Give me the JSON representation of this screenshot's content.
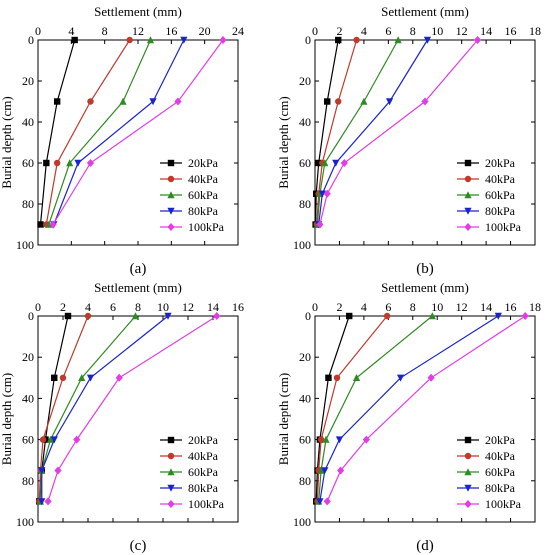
{
  "colors": {
    "20kPa": "#000000",
    "40kPa": "#c0392b",
    "60kPa": "#2e8b22",
    "80kPa": "#1a23d0",
    "100kPa": "#e23ce6"
  },
  "chart_data": [
    {
      "type": "line",
      "panel_label": "(a)",
      "xlabel": "Settlement (mm)",
      "ylabel": "Burial depth (cm)",
      "xlim": [
        0,
        24
      ],
      "xticks": [
        0,
        4,
        8,
        12,
        16,
        20,
        24
      ],
      "ylim": [
        0,
        100
      ],
      "yticks": [
        0,
        20,
        40,
        60,
        80,
        100
      ],
      "legend": "bottom-right",
      "series": [
        {
          "name": "20kPa",
          "marker": "square",
          "x": [
            4.4,
            2.3,
            1.0,
            0.3
          ],
          "y": [
            0,
            30,
            60,
            90
          ]
        },
        {
          "name": "40kPa",
          "marker": "circle",
          "x": [
            11.0,
            6.3,
            2.3,
            1.0
          ],
          "y": [
            0,
            30,
            60,
            90
          ]
        },
        {
          "name": "60kPa",
          "marker": "triangle-up",
          "x": [
            13.5,
            10.2,
            3.8,
            1.3
          ],
          "y": [
            0,
            30,
            60,
            90
          ]
        },
        {
          "name": "80kPa",
          "marker": "triangle-down",
          "x": [
            17.5,
            13.8,
            4.8,
            1.9
          ],
          "y": [
            0,
            30,
            60,
            90
          ]
        },
        {
          "name": "100kPa",
          "marker": "diamond",
          "x": [
            22.2,
            16.8,
            6.3,
            1.8
          ],
          "y": [
            0,
            30,
            60,
            90
          ]
        }
      ]
    },
    {
      "type": "line",
      "panel_label": "(b)",
      "xlabel": "Settlement (mm)",
      "ylabel": "Burial depth (cm)",
      "xlim": [
        0,
        18
      ],
      "xticks": [
        0,
        2,
        4,
        6,
        8,
        10,
        12,
        14,
        16,
        18
      ],
      "ylim": [
        0,
        100
      ],
      "yticks": [
        0,
        20,
        40,
        60,
        80,
        100
      ],
      "legend": "bottom-right",
      "series": [
        {
          "name": "20kPa",
          "marker": "square",
          "x": [
            1.9,
            1.0,
            0.3,
            0.1,
            0.05
          ],
          "y": [
            0,
            30,
            60,
            75,
            90
          ]
        },
        {
          "name": "40kPa",
          "marker": "circle",
          "x": [
            3.4,
            1.9,
            0.6,
            0.3,
            0.15
          ],
          "y": [
            0,
            30,
            60,
            75,
            90
          ]
        },
        {
          "name": "60kPa",
          "marker": "triangle-up",
          "x": [
            6.8,
            4.0,
            0.8,
            0.4,
            0.2
          ],
          "y": [
            0,
            30,
            60,
            75,
            90
          ]
        },
        {
          "name": "80kPa",
          "marker": "triangle-down",
          "x": [
            9.2,
            6.1,
            1.7,
            0.6,
            0.3
          ],
          "y": [
            0,
            30,
            60,
            75,
            90
          ]
        },
        {
          "name": "100kPa",
          "marker": "diamond",
          "x": [
            13.3,
            9.0,
            2.4,
            1.0,
            0.4
          ],
          "y": [
            0,
            30,
            60,
            75,
            90
          ]
        }
      ]
    },
    {
      "type": "line",
      "panel_label": "(c)",
      "xlabel": "Settlement (mm)",
      "ylabel": "Burial depth (cm)",
      "xlim": [
        0,
        16
      ],
      "xticks": [
        0,
        2,
        4,
        6,
        8,
        10,
        12,
        14,
        16
      ],
      "ylim": [
        0,
        100
      ],
      "yticks": [
        0,
        20,
        40,
        60,
        80,
        100
      ],
      "legend": "bottom-right",
      "series": [
        {
          "name": "20kPa",
          "marker": "square",
          "x": [
            2.4,
            1.3,
            0.6,
            0.3,
            0.1
          ],
          "y": [
            0,
            30,
            60,
            75,
            90
          ]
        },
        {
          "name": "40kPa",
          "marker": "circle",
          "x": [
            4.0,
            2.0,
            0.4,
            0.2,
            0.1
          ],
          "y": [
            0,
            30,
            60,
            75,
            90
          ]
        },
        {
          "name": "60kPa",
          "marker": "triangle-up",
          "x": [
            7.8,
            3.5,
            1.0,
            0.3,
            0.2
          ],
          "y": [
            0,
            30,
            60,
            75,
            90
          ]
        },
        {
          "name": "80kPa",
          "marker": "triangle-down",
          "x": [
            10.4,
            4.2,
            1.3,
            0.3,
            0.3
          ],
          "y": [
            0,
            30,
            60,
            75,
            90
          ]
        },
        {
          "name": "100kPa",
          "marker": "diamond",
          "x": [
            14.3,
            6.5,
            3.1,
            1.6,
            0.8
          ],
          "y": [
            0,
            30,
            60,
            75,
            90
          ]
        }
      ]
    },
    {
      "type": "line",
      "panel_label": "(d)",
      "xlabel": "Settlement (mm)",
      "ylabel": "Burial depth (cm)",
      "xlim": [
        0,
        18
      ],
      "xticks": [
        0,
        2,
        4,
        6,
        8,
        10,
        12,
        14,
        16,
        18
      ],
      "ylim": [
        0,
        100
      ],
      "yticks": [
        0,
        20,
        40,
        60,
        80,
        100
      ],
      "legend": "bottom-right",
      "series": [
        {
          "name": "20kPa",
          "marker": "square",
          "x": [
            2.8,
            1.1,
            0.4,
            0.2,
            0.1
          ],
          "y": [
            0,
            30,
            60,
            75,
            90
          ]
        },
        {
          "name": "40kPa",
          "marker": "circle",
          "x": [
            5.9,
            1.8,
            0.5,
            0.3,
            0.2
          ],
          "y": [
            0,
            30,
            60,
            75,
            90
          ]
        },
        {
          "name": "60kPa",
          "marker": "triangle-up",
          "x": [
            9.6,
            3.4,
            0.9,
            0.5,
            0.3
          ],
          "y": [
            0,
            30,
            60,
            75,
            90
          ]
        },
        {
          "name": "80kPa",
          "marker": "triangle-down",
          "x": [
            15.0,
            7.0,
            2.0,
            0.8,
            0.4
          ],
          "y": [
            0,
            30,
            60,
            75,
            90
          ]
        },
        {
          "name": "100kPa",
          "marker": "diamond",
          "x": [
            17.2,
            9.5,
            4.2,
            2.1,
            1.0
          ],
          "y": [
            0,
            30,
            60,
            75,
            90
          ]
        }
      ]
    }
  ]
}
